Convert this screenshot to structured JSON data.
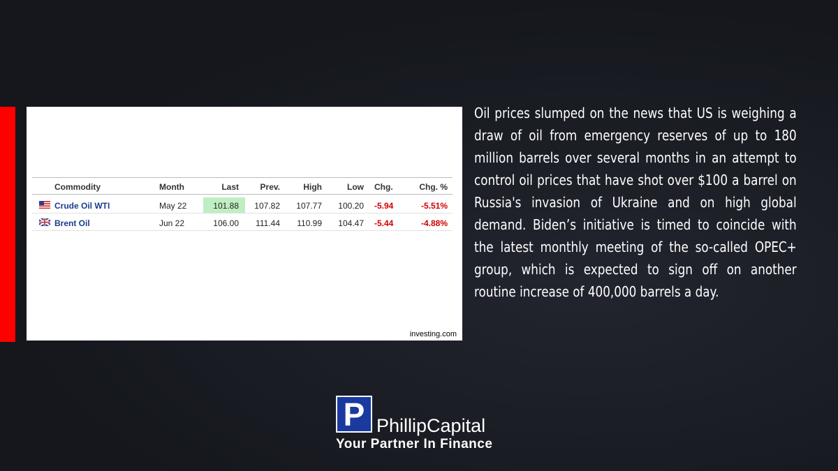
{
  "table": {
    "columns": [
      "Commodity",
      "Month",
      "Last",
      "Prev.",
      "High",
      "Low",
      "Chg.",
      "Chg. %"
    ],
    "rows": [
      [
        "Crude Oil WTI",
        "May 22",
        "101.88",
        "107.82",
        "107.77",
        "100.20",
        "-5.94",
        "-5.51%"
      ],
      [
        "Brent Oil",
        "Jun 22",
        "106.00",
        "111.44",
        "110.99",
        "104.47",
        "-5.44",
        "-4.88%"
      ]
    ],
    "source": "investing.com"
  },
  "article": {
    "text": "Oil prices slumped on the news that US is weighing a draw of oil from emergency reserves of up to 180 million barrels over several months in an attempt to control oil prices that have shot over $100 a barrel on Russia's invasion of Ukraine and on high global demand. Biden’s initiative is timed to coincide with the latest monthly meeting of the so-called OPEC+ group, which is expected to sign off on another routine increase of 400,000 barrels a day."
  },
  "logo": {
    "mark": "P",
    "name": "PhillipCapital",
    "tagline": "Your Partner In Finance"
  }
}
